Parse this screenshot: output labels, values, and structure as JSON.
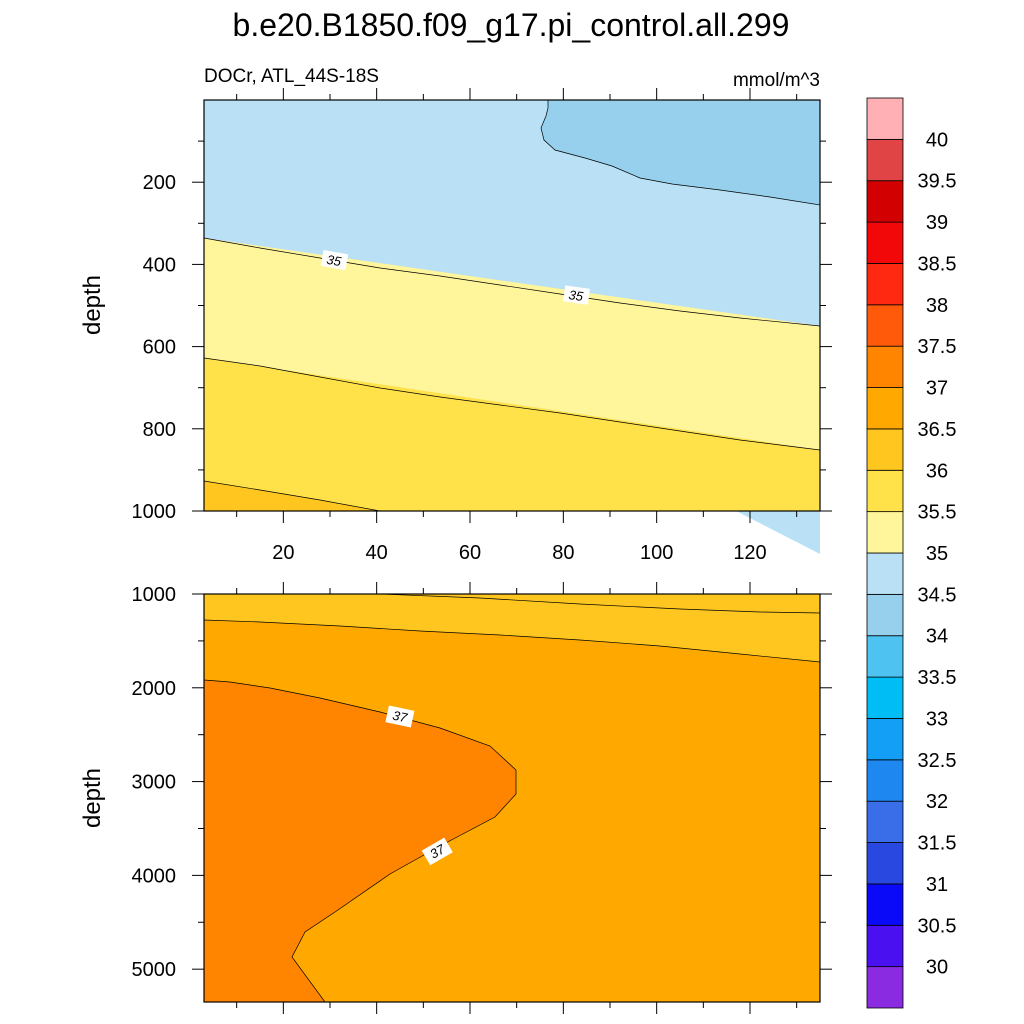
{
  "chart_data": {
    "type": "contour",
    "title": "b.e20.B1850.f09_g17.pi_control.all.299",
    "subtitle_left": "DOCr, ATL_44S-18S",
    "subtitle_right": "mmol/m^3",
    "colorbar": {
      "levels": [
        "30",
        "30.5",
        "31",
        "31.5",
        "32",
        "32.5",
        "33",
        "33.5",
        "34",
        "34.5",
        "35",
        "35.5",
        "36",
        "36.5",
        "37",
        "37.5",
        "38",
        "38.5",
        "39",
        "39.5",
        "40"
      ],
      "colors": [
        "#8a2be2",
        "#4b10f0",
        "#0a0af8",
        "#2848e0",
        "#3a6ee8",
        "#1e88f0",
        "#139ff5",
        "#00bef5",
        "#4ec2f0",
        "#96d0ed",
        "#b9e0f5",
        "#fff59a",
        "#ffe24a",
        "#ffc61f",
        "#ffa800",
        "#ff8400",
        "#ff5a0a",
        "#ff2810",
        "#f20808",
        "#d20000",
        "#e04444",
        "#ffb0b4"
      ]
    },
    "panels": [
      {
        "ylabel": "depth",
        "ylim": [
          0,
          1000
        ],
        "y_reversed": true,
        "xlim": [
          3,
          135
        ],
        "xticks": [
          "20",
          "40",
          "60",
          "80",
          "100",
          "120"
        ],
        "yticks": [
          "200",
          "400",
          "600",
          "800",
          "1000"
        ],
        "contour_labels": [
          "35",
          "35"
        ],
        "regions": [
          {
            "level": "34.5-35",
            "color": "#b9e0f5"
          },
          {
            "level": "34-34.5",
            "color": "#96d0ed"
          },
          {
            "level": "35-35.5",
            "color": "#fff59a"
          },
          {
            "level": "35.5-36",
            "color": "#ffe24a"
          },
          {
            "level": "36-36.5",
            "color": "#ffc61f"
          }
        ]
      },
      {
        "ylabel": "depth",
        "ylim": [
          1000,
          5350
        ],
        "y_reversed": true,
        "xlim": [
          3,
          135
        ],
        "yticks": [
          "1000",
          "2000",
          "3000",
          "4000",
          "5000"
        ],
        "contour_labels": [
          "37",
          "37"
        ],
        "regions": [
          {
            "level": "36-36.5",
            "color": "#ffc61f"
          },
          {
            "level": "36.5-37",
            "color": "#ffa800"
          },
          {
            "level": "37-37.5",
            "color": "#ff8400"
          }
        ]
      }
    ]
  }
}
